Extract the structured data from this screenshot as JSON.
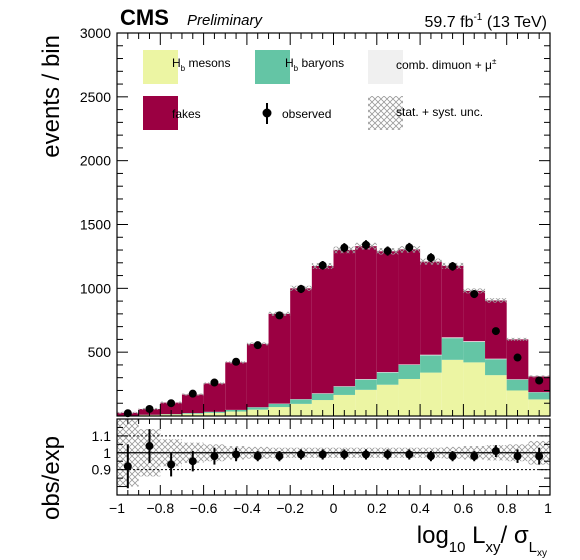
{
  "header": {
    "experiment": "CMS",
    "status": "Preliminary",
    "lumi": "59.7 fb",
    "lumi_exp": "-1",
    "energy": " (13 TeV)"
  },
  "top_ylabel": "events / bin",
  "bottom_ylabel": "obs/exp",
  "xlabel": {
    "a": "log",
    "a_sub": "10",
    "b": " L",
    "b_sub": "xy",
    "c": "/ σ",
    "c_sub": "L",
    "c_subsub": "xy"
  },
  "legend": {
    "hb_mesons_main": "H",
    "hb_mesons_sub": "b",
    "hb_mesons_rest": " mesons",
    "hb_baryons_main": "H",
    "hb_baryons_sub": "b",
    "hb_baryons_rest": " baryons",
    "comb": "comb. dimuon + μ",
    "comb_sup": "±",
    "fakes": "fakes",
    "observed": "observed",
    "unc": "stat. + syst. unc."
  },
  "colors": {
    "mesons": "#ecf5a3",
    "baryons": "#64c5a5",
    "comb": "#f0f0f0",
    "fakes": "#9b0042",
    "unc_hatch": "#9a9a9a"
  },
  "chart_data": {
    "type": "bar",
    "stacked": true,
    "bin_edges": [
      -1.0,
      -0.9,
      -0.8,
      -0.7,
      -0.6,
      -0.5,
      -0.4,
      -0.3,
      -0.2,
      -0.1,
      0.0,
      0.1,
      0.2,
      0.3,
      0.4,
      0.5,
      0.6,
      0.7,
      0.8,
      0.9,
      1.0
    ],
    "x_ticks": [
      "−1",
      "−0.8",
      "−0.6",
      "−0.4",
      "−0.2",
      "0",
      "0.2",
      "0.4",
      "0.6",
      "0.8",
      "1"
    ],
    "x_tick_values": [
      -1.0,
      -0.8,
      -0.6,
      -0.4,
      -0.2,
      0.0,
      0.2,
      0.4,
      0.6,
      0.8,
      1.0
    ],
    "xlim": [
      -1.0,
      1.0
    ],
    "top": {
      "ylim": [
        0,
        3000
      ],
      "y_ticks": [
        500,
        1000,
        1500,
        2000,
        2500,
        3000
      ],
      "y_tick_labels": [
        "500",
        "1000",
        "1500",
        "2000",
        "2500",
        "3000"
      ],
      "series": [
        {
          "name": "H_b mesons",
          "values": [
            3,
            8,
            12,
            18,
            25,
            35,
            50,
            70,
            95,
            125,
            165,
            205,
            245,
            290,
            340,
            440,
            420,
            320,
            200,
            130
          ]
        },
        {
          "name": "H_b baryons",
          "values": [
            1,
            2,
            3,
            5,
            8,
            12,
            18,
            25,
            35,
            50,
            65,
            80,
            95,
            110,
            135,
            170,
            160,
            125,
            85,
            55
          ]
        },
        {
          "name": "comb. dimuon + μ±",
          "values": [
            0,
            0,
            0,
            0,
            0,
            1,
            1,
            2,
            2,
            3,
            3,
            4,
            4,
            4,
            5,
            6,
            6,
            4,
            3,
            2
          ]
        },
        {
          "name": "fakes",
          "values": [
            21,
            45,
            90,
            145,
            222,
            372,
            496,
            703,
            868,
            997,
            1068,
            1041,
            946,
            901,
            729,
            560,
            394,
            456,
            312,
            123
          ]
        }
      ],
      "observed": [
        22,
        55,
        100,
        175,
        262,
        425,
        555,
        788,
        995,
        1180,
        1318,
        1340,
        1292,
        1320,
        1240,
        1172,
        955,
        665,
        458,
        278
      ],
      "observed_err": [
        5,
        7,
        10,
        13,
        16,
        21,
        24,
        28,
        32,
        34,
        36,
        37,
        36,
        36,
        35,
        34,
        31,
        26,
        21,
        17
      ]
    },
    "bottom": {
      "ylim": [
        0.75,
        1.2
      ],
      "y_ticks": [
        0.9,
        1.0,
        1.1
      ],
      "y_tick_labels": [
        "0.9",
        "1",
        "1.1"
      ],
      "ratio": [
        0.92,
        1.04,
        0.93,
        0.95,
        0.98,
        0.99,
        0.98,
        0.98,
        0.99,
        0.99,
        0.99,
        0.99,
        0.99,
        0.99,
        0.98,
        0.98,
        0.98,
        1.01,
        0.98,
        0.98
      ],
      "ratio_err": [
        0.13,
        0.1,
        0.07,
        0.06,
        0.05,
        0.04,
        0.03,
        0.03,
        0.03,
        0.03,
        0.03,
        0.03,
        0.03,
        0.03,
        0.03,
        0.03,
        0.03,
        0.035,
        0.04,
        0.05
      ],
      "unc_band": [
        0.2,
        0.14,
        0.08,
        0.06,
        0.05,
        0.04,
        0.035,
        0.03,
        0.03,
        0.03,
        0.03,
        0.03,
        0.03,
        0.03,
        0.03,
        0.035,
        0.04,
        0.045,
        0.05,
        0.07
      ],
      "guide_lines": [
        0.9,
        1.0,
        1.1
      ]
    }
  }
}
